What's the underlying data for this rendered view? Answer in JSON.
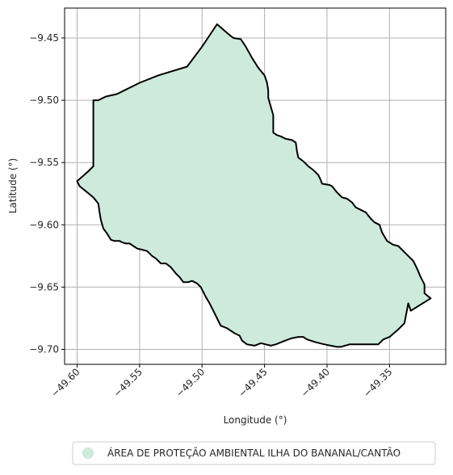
{
  "map": {
    "xlabel": "Longitude (°)",
    "ylabel": "Latitude (°)",
    "xlim": [
      -49.61,
      -49.305
    ],
    "ylim": [
      -9.712,
      -9.426
    ],
    "grid": true,
    "x_ticks": [
      -49.6,
      -49.55,
      -49.5,
      -49.45,
      -49.4,
      -49.35
    ],
    "x_tick_labels": [
      "−49.60",
      "−49.55",
      "−49.50",
      "−49.45",
      "−49.40",
      "−49.35"
    ],
    "y_ticks": [
      -9.45,
      -9.5,
      -9.55,
      -9.6,
      -9.65,
      -9.7
    ],
    "y_tick_labels": [
      "−9.45",
      "−9.50",
      "−9.55",
      "−9.60",
      "−9.65",
      "−9.70"
    ],
    "region": {
      "label": "ÁREA DE PROTEÇÃO AMBIENTAL ILHA DO BANANAL/CANTÃO",
      "fill_color": "#cdeadc",
      "edge_color": "#000000",
      "boundary_lonlat": [
        [
          -49.488,
          -9.439
        ],
        [
          -49.48,
          -9.446
        ],
        [
          -49.475,
          -9.45
        ],
        [
          -49.469,
          -9.451
        ],
        [
          -49.465,
          -9.457
        ],
        [
          -49.46,
          -9.466
        ],
        [
          -49.455,
          -9.474
        ],
        [
          -49.45,
          -9.48
        ],
        [
          -49.448,
          -9.486
        ],
        [
          -49.447,
          -9.492
        ],
        [
          -49.447,
          -9.498
        ],
        [
          -49.445,
          -9.505
        ],
        [
          -49.443,
          -9.512
        ],
        [
          -49.443,
          -9.519
        ],
        [
          -49.443,
          -9.526
        ],
        [
          -49.44,
          -9.528
        ],
        [
          -49.437,
          -9.529
        ],
        [
          -49.433,
          -9.531
        ],
        [
          -49.428,
          -9.532
        ],
        [
          -49.425,
          -9.534
        ],
        [
          -49.424,
          -9.541
        ],
        [
          -49.423,
          -9.546
        ],
        [
          -49.419,
          -9.549
        ],
        [
          -49.415,
          -9.553
        ],
        [
          -49.411,
          -9.556
        ],
        [
          -49.407,
          -9.56
        ],
        [
          -49.405,
          -9.564
        ],
        [
          -49.404,
          -9.567
        ],
        [
          -49.398,
          -9.568
        ],
        [
          -49.396,
          -9.569
        ],
        [
          -49.392,
          -9.574
        ],
        [
          -49.388,
          -9.578
        ],
        [
          -49.384,
          -9.579
        ],
        [
          -49.38,
          -9.582
        ],
        [
          -49.377,
          -9.586
        ],
        [
          -49.373,
          -9.588
        ],
        [
          -49.369,
          -9.59
        ],
        [
          -49.365,
          -9.595
        ],
        [
          -49.362,
          -9.598
        ],
        [
          -49.358,
          -9.6
        ],
        [
          -49.356,
          -9.606
        ],
        [
          -49.352,
          -9.613
        ],
        [
          -49.347,
          -9.616
        ],
        [
          -49.343,
          -9.617
        ],
        [
          -49.337,
          -9.623
        ],
        [
          -49.331,
          -9.629
        ],
        [
          -49.328,
          -9.635
        ],
        [
          -49.325,
          -9.642
        ],
        [
          -49.322,
          -9.648
        ],
        [
          -49.322,
          -9.655
        ],
        [
          -49.317,
          -9.659
        ],
        [
          -49.333,
          -9.669
        ],
        [
          -49.335,
          -9.663
        ],
        [
          -49.338,
          -9.679
        ],
        [
          -49.343,
          -9.684
        ],
        [
          -49.35,
          -9.69
        ],
        [
          -49.355,
          -9.692
        ],
        [
          -49.359,
          -9.696
        ],
        [
          -49.382,
          -9.696
        ],
        [
          -49.389,
          -9.698
        ],
        [
          -49.392,
          -9.698
        ],
        [
          -49.397,
          -9.697
        ],
        [
          -49.402,
          -9.696
        ],
        [
          -49.406,
          -9.695
        ],
        [
          -49.41,
          -9.694
        ],
        [
          -49.416,
          -9.692
        ],
        [
          -49.419,
          -9.69
        ],
        [
          -49.423,
          -9.69
        ],
        [
          -49.428,
          -9.691
        ],
        [
          -49.431,
          -9.692
        ],
        [
          -49.436,
          -9.694
        ],
        [
          -49.441,
          -9.696
        ],
        [
          -49.445,
          -9.697
        ],
        [
          -49.449,
          -9.696
        ],
        [
          -49.453,
          -9.695
        ],
        [
          -49.458,
          -9.697
        ],
        [
          -49.464,
          -9.696
        ],
        [
          -49.468,
          -9.693
        ],
        [
          -49.47,
          -9.689
        ],
        [
          -49.474,
          -9.687
        ],
        [
          -49.477,
          -9.685
        ],
        [
          -49.48,
          -9.683
        ],
        [
          -49.485,
          -9.681
        ],
        [
          -49.487,
          -9.677
        ],
        [
          -49.489,
          -9.673
        ],
        [
          -49.491,
          -9.669
        ],
        [
          -49.494,
          -9.663
        ],
        [
          -49.497,
          -9.658
        ],
        [
          -49.499,
          -9.654
        ],
        [
          -49.501,
          -9.65
        ],
        [
          -49.504,
          -9.647
        ],
        [
          -49.508,
          -9.645
        ],
        [
          -49.511,
          -9.646
        ],
        [
          -49.515,
          -9.646
        ],
        [
          -49.518,
          -9.642
        ],
        [
          -49.521,
          -9.639
        ],
        [
          -49.525,
          -9.634
        ],
        [
          -49.529,
          -9.631
        ],
        [
          -49.533,
          -9.631
        ],
        [
          -49.537,
          -9.627
        ],
        [
          -49.54,
          -9.625
        ],
        [
          -49.544,
          -9.621
        ],
        [
          -49.548,
          -9.62
        ],
        [
          -49.552,
          -9.619
        ],
        [
          -49.555,
          -9.617
        ],
        [
          -49.558,
          -9.615
        ],
        [
          -49.561,
          -9.615
        ],
        [
          -49.564,
          -9.614
        ],
        [
          -49.566,
          -9.613
        ],
        [
          -49.57,
          -9.613
        ],
        [
          -49.573,
          -9.612
        ],
        [
          -49.576,
          -9.607
        ],
        [
          -49.579,
          -9.603
        ],
        [
          -49.581,
          -9.596
        ],
        [
          -49.582,
          -9.59
        ],
        [
          -49.583,
          -9.583
        ],
        [
          -49.587,
          -9.578
        ],
        [
          -49.593,
          -9.573
        ],
        [
          -49.598,
          -9.569
        ],
        [
          -49.6,
          -9.565
        ],
        [
          -49.591,
          -9.557
        ],
        [
          -49.587,
          -9.553
        ],
        [
          -49.587,
          -9.5
        ],
        [
          -49.583,
          -9.5
        ],
        [
          -49.577,
          -9.497
        ],
        [
          -49.568,
          -9.495
        ],
        [
          -49.56,
          -9.491
        ],
        [
          -49.55,
          -9.486
        ],
        [
          -49.535,
          -9.48
        ],
        [
          -49.512,
          -9.473
        ],
        [
          -49.5,
          -9.457
        ],
        [
          -49.488,
          -9.439
        ]
      ]
    }
  }
}
